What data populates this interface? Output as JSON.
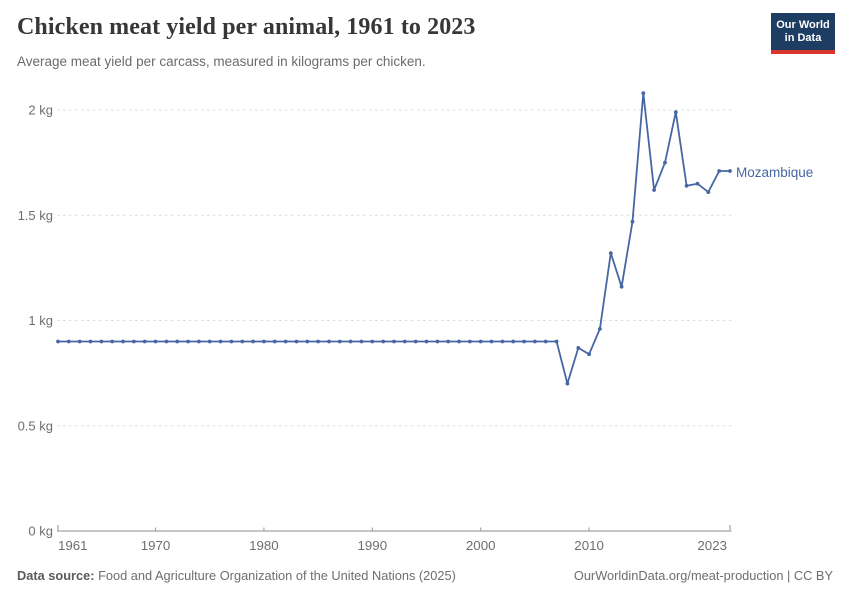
{
  "header": {
    "title": "Chicken meat yield per animal, 1961 to 2023",
    "subtitle": "Average meat yield per carcass, measured in kilograms per chicken.",
    "logo": {
      "line1": "Our World",
      "line2": "in Data",
      "bg_color": "#1d3d63",
      "bar_color": "#d8352f"
    }
  },
  "chart_data": {
    "type": "line",
    "title": "Chicken meat yield per animal, 1961 to 2023",
    "subtitle": "Average meat yield per carcass, measured in kilograms per chicken.",
    "unit": "kg",
    "series_label": "Mozambique",
    "legend_position": "end-of-line label",
    "grid": "horizontal dashed",
    "xlim": [
      1961,
      2023
    ],
    "ylim": [
      0,
      2
    ],
    "series": [
      {
        "name": "Mozambique",
        "color": "#4766a3",
        "years": [
          1961,
          1962,
          1963,
          1964,
          1965,
          1966,
          1967,
          1968,
          1969,
          1970,
          1971,
          1972,
          1973,
          1974,
          1975,
          1976,
          1977,
          1978,
          1979,
          1980,
          1981,
          1982,
          1983,
          1984,
          1985,
          1986,
          1987,
          1988,
          1989,
          1990,
          1991,
          1992,
          1993,
          1994,
          1995,
          1996,
          1997,
          1998,
          1999,
          2000,
          2001,
          2002,
          2003,
          2004,
          2005,
          2006,
          2007,
          2008,
          2009,
          2010,
          2011,
          2012,
          2013,
          2014,
          2015,
          2016,
          2017,
          2018,
          2019,
          2020,
          2021,
          2022,
          2023
        ],
        "values": [
          0.9,
          0.9,
          0.9,
          0.9,
          0.9,
          0.9,
          0.9,
          0.9,
          0.9,
          0.9,
          0.9,
          0.9,
          0.9,
          0.9,
          0.9,
          0.9,
          0.9,
          0.9,
          0.9,
          0.9,
          0.9,
          0.9,
          0.9,
          0.9,
          0.9,
          0.9,
          0.9,
          0.9,
          0.9,
          0.9,
          0.9,
          0.9,
          0.9,
          0.9,
          0.9,
          0.9,
          0.9,
          0.9,
          0.9,
          0.9,
          0.9,
          0.9,
          0.9,
          0.9,
          0.9,
          0.9,
          0.9,
          0.7,
          0.87,
          0.84,
          0.96,
          1.32,
          1.16,
          1.47,
          2.08,
          1.62,
          1.75,
          1.99,
          1.64,
          1.65,
          1.61,
          1.71,
          1.71
        ]
      }
    ],
    "y_ticks": [
      {
        "value": 0,
        "label": "0 kg"
      },
      {
        "value": 0.5,
        "label": "0.5 kg"
      },
      {
        "value": 1,
        "label": "1 kg"
      },
      {
        "value": 1.5,
        "label": "1.5 kg"
      },
      {
        "value": 2,
        "label": "2 kg"
      }
    ],
    "x_ticks": [
      {
        "year": 1961,
        "label": "1961"
      },
      {
        "year": 1970,
        "label": "1970"
      },
      {
        "year": 1980,
        "label": "1980"
      },
      {
        "year": 1990,
        "label": "1990"
      },
      {
        "year": 2000,
        "label": "2000"
      },
      {
        "year": 2010,
        "label": "2010"
      },
      {
        "year": 2023,
        "label": "2023"
      }
    ],
    "colors": {
      "line": "#4766a3",
      "grid": "#dcdcdc",
      "axis": "#a5a5a5",
      "tick_text": "#6e6e6e"
    }
  },
  "footer": {
    "source_label": "Data source:",
    "source_text": " Food and Agriculture Organization of the United Nations (2025)",
    "link_text": "OurWorldinData.org/meat-production | CC BY"
  }
}
